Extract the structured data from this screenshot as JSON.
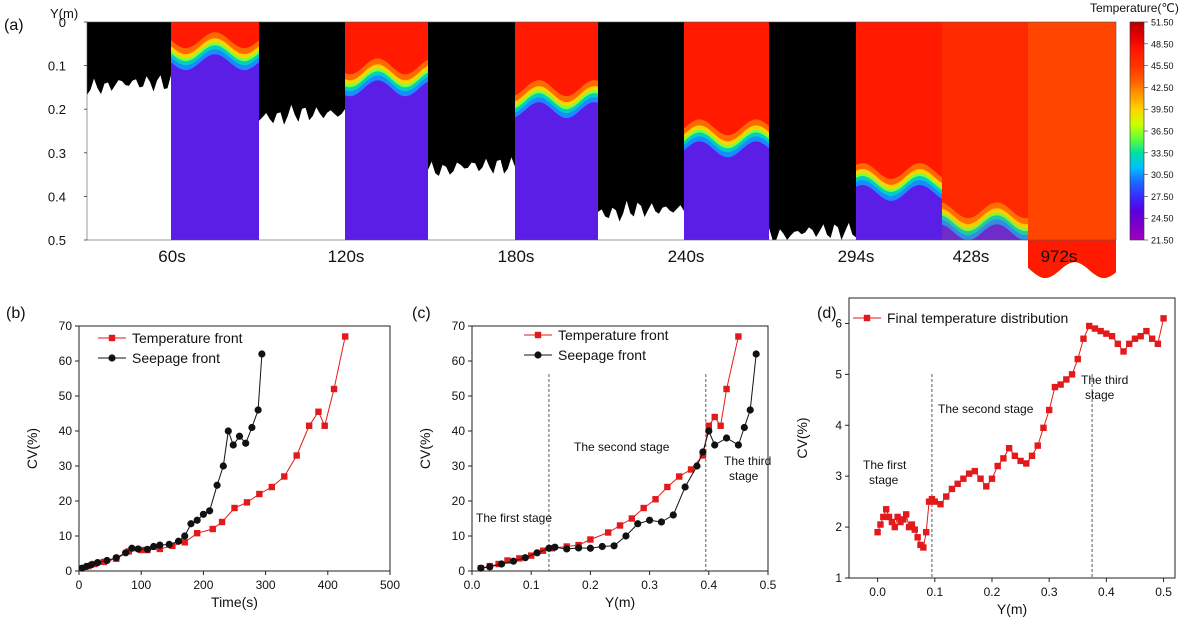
{
  "figure": {
    "panel_a": {
      "label": "(a)",
      "y_axis_title": "Y(m)",
      "y_ticks": [
        "0",
        "0.1",
        "0.2",
        "0.3",
        "0.4",
        "0.5"
      ],
      "pairs": [
        {
          "time": "60s",
          "seepage_depth": 0.14,
          "front_depth": 0.06
        },
        {
          "time": "120s",
          "seepage_depth": 0.21,
          "front_depth": 0.12
        },
        {
          "time": "180s",
          "seepage_depth": 0.33,
          "front_depth": 0.17
        },
        {
          "time": "240s",
          "seepage_depth": 0.43,
          "front_depth": 0.26
        }
      ],
      "single_seepage": {
        "time": "294s",
        "seepage_depth": 0.48
      },
      "temp_maps": [
        {
          "time": "294s",
          "front_depth": 0.36
        },
        {
          "time": "428s",
          "front_depth": 0.45
        },
        {
          "time": "972s",
          "front_depth": 0.6
        }
      ]
    },
    "colorbar": {
      "title": "Temperature(℃)",
      "ticks": [
        "51.50",
        "48.50",
        "45.50",
        "42.50",
        "39.50",
        "36.50",
        "33.50",
        "30.50",
        "27.50",
        "24.50",
        "21.50"
      ],
      "colors": [
        "#b30000",
        "#e60000",
        "#ff1a00",
        "#ff3300",
        "#ff5c00",
        "#ff9900",
        "#ffd200",
        "#cfff00",
        "#66ff33",
        "#00e0a0",
        "#00c0ff",
        "#1a6bff",
        "#3a2bff",
        "#5a00e0",
        "#7a00c8",
        "#a000c0"
      ]
    }
  },
  "chart_data": [
    {
      "type": "line",
      "panel": "(b)",
      "title": "",
      "xlabel": "Time(s)",
      "ylabel": "CV(%)",
      "xlim": [
        0,
        500
      ],
      "ylim": [
        0,
        70
      ],
      "x_ticks": [
        "0",
        "100",
        "200",
        "300",
        "400",
        "500"
      ],
      "y_ticks": [
        "0",
        "10",
        "20",
        "30",
        "40",
        "50",
        "60",
        "70"
      ],
      "series": [
        {
          "name": "Temperature front",
          "color": "#e31a1c",
          "marker": "square",
          "points": [
            [
              5,
              0.8
            ],
            [
              15,
              1.4
            ],
            [
              25,
              2.0
            ],
            [
              40,
              2.6
            ],
            [
              60,
              3.5
            ],
            [
              80,
              5.6
            ],
            [
              100,
              6.0
            ],
            [
              110,
              6.0
            ],
            [
              130,
              6.3
            ],
            [
              150,
              7.2
            ],
            [
              170,
              8.2
            ],
            [
              190,
              10.8
            ],
            [
              215,
              12.0
            ],
            [
              230,
              14.0
            ],
            [
              250,
              18.0
            ],
            [
              270,
              19.6
            ],
            [
              290,
              22.0
            ],
            [
              310,
              24.0
            ],
            [
              330,
              27.0
            ],
            [
              350,
              33.0
            ],
            [
              370,
              41.5
            ],
            [
              385,
              45.5
            ],
            [
              395,
              41.5
            ],
            [
              410,
              52.0
            ],
            [
              428,
              67.0
            ]
          ]
        },
        {
          "name": "Seepage front",
          "color": "#111111",
          "marker": "circle",
          "points": [
            [
              5,
              0.8
            ],
            [
              12,
              1.3
            ],
            [
              20,
              1.8
            ],
            [
              30,
              2.4
            ],
            [
              45,
              3.0
            ],
            [
              60,
              3.8
            ],
            [
              75,
              5.2
            ],
            [
              85,
              6.5
            ],
            [
              95,
              6.3
            ],
            [
              110,
              6.2
            ],
            [
              120,
              7.0
            ],
            [
              130,
              7.4
            ],
            [
              145,
              7.6
            ],
            [
              160,
              8.5
            ],
            [
              170,
              10.0
            ],
            [
              180,
              13.5
            ],
            [
              190,
              14.5
            ],
            [
              200,
              16.2
            ],
            [
              210,
              17.2
            ],
            [
              222,
              24.5
            ],
            [
              232,
              30.0
            ],
            [
              240,
              40.0
            ],
            [
              248,
              36.0
            ],
            [
              258,
              38.5
            ],
            [
              268,
              36.5
            ],
            [
              278,
              41.0
            ],
            [
              288,
              46.0
            ],
            [
              294,
              62.0
            ]
          ]
        }
      ]
    },
    {
      "type": "line",
      "panel": "(c)",
      "title": "",
      "xlabel": "Y(m)",
      "ylabel": "CV(%)",
      "xlim": [
        0,
        0.5
      ],
      "ylim": [
        0,
        70
      ],
      "x_ticks": [
        "0.0",
        "0.1",
        "0.2",
        "0.3",
        "0.4",
        "0.5"
      ],
      "y_ticks": [
        "0",
        "10",
        "20",
        "30",
        "40",
        "50",
        "60",
        "70"
      ],
      "stage_lines": [
        0.13,
        0.395
      ],
      "annotations": [
        "The first stage",
        "The second stage",
        "The third",
        "stage"
      ],
      "series": [
        {
          "name": "Temperature front",
          "color": "#e31a1c",
          "marker": "square",
          "points": [
            [
              0.015,
              0.8
            ],
            [
              0.03,
              1.4
            ],
            [
              0.045,
              2.0
            ],
            [
              0.06,
              3.0
            ],
            [
              0.08,
              3.6
            ],
            [
              0.1,
              4.4
            ],
            [
              0.12,
              5.8
            ],
            [
              0.135,
              6.5
            ],
            [
              0.16,
              7.0
            ],
            [
              0.18,
              7.4
            ],
            [
              0.2,
              9.0
            ],
            [
              0.23,
              11.0
            ],
            [
              0.25,
              13.0
            ],
            [
              0.27,
              15.0
            ],
            [
              0.29,
              18.0
            ],
            [
              0.31,
              20.5
            ],
            [
              0.33,
              24.0
            ],
            [
              0.35,
              27.0
            ],
            [
              0.37,
              29.0
            ],
            [
              0.39,
              33.0
            ],
            [
              0.4,
              41.5
            ],
            [
              0.41,
              44.0
            ],
            [
              0.42,
              41.5
            ],
            [
              0.43,
              52.0
            ],
            [
              0.45,
              67.0
            ]
          ]
        },
        {
          "name": "Seepage front",
          "color": "#111111",
          "marker": "circle",
          "points": [
            [
              0.015,
              0.8
            ],
            [
              0.03,
              1.2
            ],
            [
              0.05,
              2.0
            ],
            [
              0.07,
              2.8
            ],
            [
              0.09,
              3.8
            ],
            [
              0.11,
              5.2
            ],
            [
              0.13,
              6.5
            ],
            [
              0.14,
              6.8
            ],
            [
              0.16,
              6.3
            ],
            [
              0.18,
              6.6
            ],
            [
              0.2,
              6.5
            ],
            [
              0.22,
              7.0
            ],
            [
              0.24,
              7.2
            ],
            [
              0.26,
              10.0
            ],
            [
              0.28,
              13.5
            ],
            [
              0.3,
              14.5
            ],
            [
              0.32,
              14.0
            ],
            [
              0.34,
              16.0
            ],
            [
              0.36,
              24.0
            ],
            [
              0.38,
              30.0
            ],
            [
              0.39,
              34.0
            ],
            [
              0.4,
              40.0
            ],
            [
              0.41,
              36.0
            ],
            [
              0.43,
              38.0
            ],
            [
              0.45,
              36.0
            ],
            [
              0.46,
              41.0
            ],
            [
              0.47,
              46.0
            ],
            [
              0.48,
              62.0
            ]
          ]
        }
      ]
    },
    {
      "type": "line",
      "panel": "(d)",
      "title": "",
      "xlabel": "Y(m)",
      "ylabel": "CV(%)",
      "xlim": [
        -0.05,
        0.52
      ],
      "ylim": [
        1,
        6.5
      ],
      "x_ticks": [
        "0.0",
        "0.1",
        "0.2",
        "0.3",
        "0.4",
        "0.5"
      ],
      "y_ticks": [
        "1",
        "2",
        "3",
        "4",
        "5",
        "6"
      ],
      "stage_lines": [
        0.095,
        0.375
      ],
      "annotations": [
        "The first",
        "stage",
        "The second stage",
        "The third",
        "stage"
      ],
      "series": [
        {
          "name": "Final temperature distribution",
          "color": "#e31a1c",
          "marker": "square",
          "points": [
            [
              0.0,
              1.9
            ],
            [
              0.005,
              2.05
            ],
            [
              0.01,
              2.2
            ],
            [
              0.015,
              2.35
            ],
            [
              0.02,
              2.2
            ],
            [
              0.025,
              2.1
            ],
            [
              0.03,
              2.0
            ],
            [
              0.035,
              2.2
            ],
            [
              0.04,
              2.1
            ],
            [
              0.045,
              2.15
            ],
            [
              0.05,
              2.25
            ],
            [
              0.055,
              2.0
            ],
            [
              0.06,
              2.05
            ],
            [
              0.065,
              1.95
            ],
            [
              0.07,
              1.8
            ],
            [
              0.075,
              1.65
            ],
            [
              0.08,
              1.6
            ],
            [
              0.085,
              1.9
            ],
            [
              0.09,
              2.5
            ],
            [
              0.095,
              2.55
            ],
            [
              0.1,
              2.5
            ],
            [
              0.11,
              2.45
            ],
            [
              0.12,
              2.6
            ],
            [
              0.13,
              2.75
            ],
            [
              0.14,
              2.85
            ],
            [
              0.15,
              2.95
            ],
            [
              0.16,
              3.05
            ],
            [
              0.17,
              3.1
            ],
            [
              0.18,
              2.95
            ],
            [
              0.19,
              2.8
            ],
            [
              0.2,
              2.95
            ],
            [
              0.21,
              3.2
            ],
            [
              0.22,
              3.35
            ],
            [
              0.23,
              3.55
            ],
            [
              0.24,
              3.4
            ],
            [
              0.25,
              3.3
            ],
            [
              0.26,
              3.25
            ],
            [
              0.27,
              3.4
            ],
            [
              0.28,
              3.6
            ],
            [
              0.29,
              3.95
            ],
            [
              0.3,
              4.3
            ],
            [
              0.31,
              4.75
            ],
            [
              0.32,
              4.8
            ],
            [
              0.33,
              4.9
            ],
            [
              0.34,
              5.0
            ],
            [
              0.35,
              5.3
            ],
            [
              0.36,
              5.7
            ],
            [
              0.37,
              5.95
            ],
            [
              0.38,
              5.9
            ],
            [
              0.39,
              5.85
            ],
            [
              0.4,
              5.8
            ],
            [
              0.41,
              5.75
            ],
            [
              0.42,
              5.6
            ],
            [
              0.43,
              5.45
            ],
            [
              0.44,
              5.6
            ],
            [
              0.45,
              5.7
            ],
            [
              0.46,
              5.75
            ],
            [
              0.47,
              5.85
            ],
            [
              0.48,
              5.7
            ],
            [
              0.49,
              5.6
            ],
            [
              0.5,
              6.1
            ]
          ]
        }
      ]
    }
  ]
}
